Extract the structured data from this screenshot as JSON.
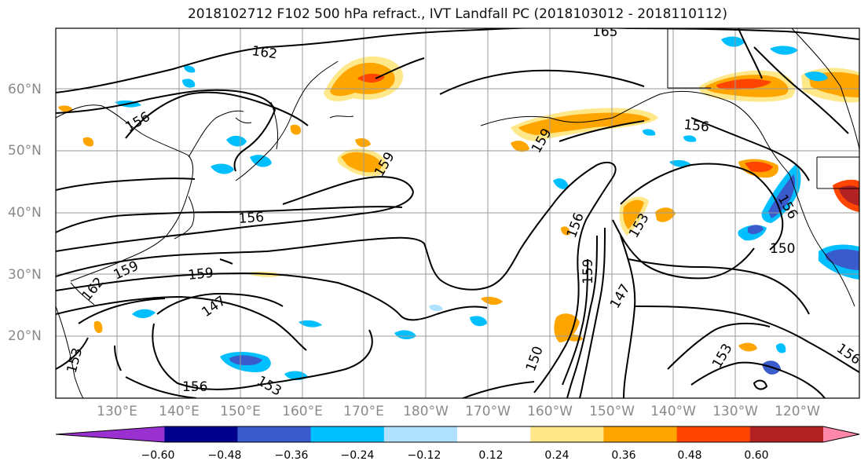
{
  "title": "2018102712 F102 500 hPa refract., IVT Landfall PC (2018103012 - 2018110112)",
  "lat_labels": [
    "60°N",
    "50°N",
    "40°N",
    "30°N",
    "20°N"
  ],
  "lon_labels": [
    "130°E",
    "140°E",
    "150°E",
    "160°E",
    "170°E",
    "180°W",
    "170°W",
    "160°W",
    "150°W",
    "140°W",
    "130°W",
    "120°W"
  ],
  "contour_labels": [
    "165",
    "162",
    "156",
    "156",
    "159",
    "159",
    "156",
    "156",
    "153",
    "156",
    "150",
    "159",
    "159",
    "159",
    "162",
    "147",
    "147",
    "153",
    "153",
    "150",
    "156",
    "153",
    "156"
  ],
  "colorbar": {
    "tick_labels": [
      "−0.60",
      "−0.48",
      "−0.36",
      "−0.24",
      "−0.12",
      "0.12",
      "0.24",
      "0.36",
      "0.48",
      "0.60"
    ],
    "colors": [
      "#9b30d0",
      "#00008b",
      "#3a5bcc",
      "#00bfff",
      "#b0e2ff",
      "#ffffff",
      "#ffe88a",
      "#ffa500",
      "#ff4500",
      "#b22222",
      "#ff88aa"
    ]
  }
}
